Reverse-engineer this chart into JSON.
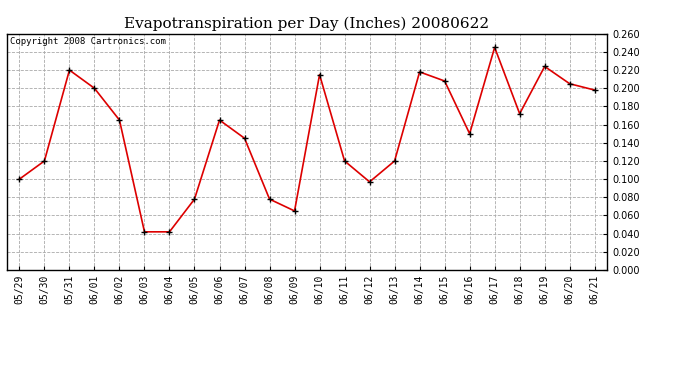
{
  "title": "Evapotranspiration per Day (Inches) 20080622",
  "copyright_text": "Copyright 2008 Cartronics.com",
  "dates": [
    "05/29",
    "05/30",
    "05/31",
    "06/01",
    "06/02",
    "06/03",
    "06/04",
    "06/05",
    "06/06",
    "06/07",
    "06/08",
    "06/09",
    "06/10",
    "06/11",
    "06/12",
    "06/13",
    "06/14",
    "06/15",
    "06/16",
    "06/17",
    "06/18",
    "06/19",
    "06/20",
    "06/21"
  ],
  "values": [
    0.1,
    0.12,
    0.22,
    0.2,
    0.165,
    0.042,
    0.042,
    0.078,
    0.165,
    0.145,
    0.078,
    0.065,
    0.215,
    0.12,
    0.097,
    0.12,
    0.218,
    0.208,
    0.15,
    0.245,
    0.172,
    0.224,
    0.205,
    0.198
  ],
  "line_color": "#dd0000",
  "marker": "+",
  "marker_color": "#000000",
  "marker_size": 5,
  "ylim": [
    0.0,
    0.26
  ],
  "ytick_step": 0.02,
  "background_color": "#ffffff",
  "plot_bg_color": "#ffffff",
  "grid_color": "#aaaaaa",
  "grid_style": "--",
  "title_fontsize": 11,
  "copyright_fontsize": 6.5,
  "tick_fontsize": 7
}
